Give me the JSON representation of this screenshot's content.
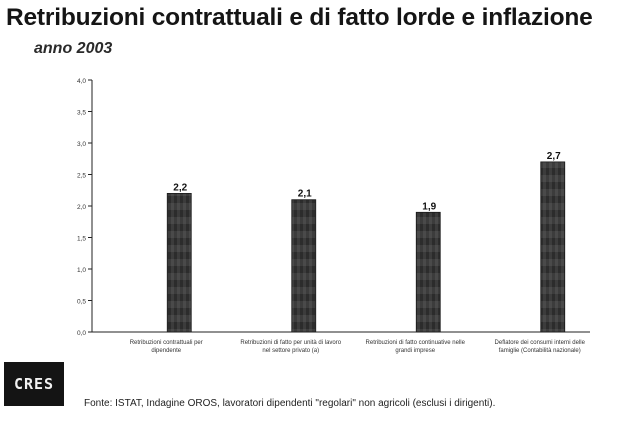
{
  "header": {
    "title": "Retribuzioni contrattuali e di fatto lorde e inflazione",
    "subtitle": "anno 2003"
  },
  "chart_data": {
    "type": "bar",
    "title": "Retribuzioni contrattuali e di fatto lorde e inflazione",
    "subtitle": "anno 2003",
    "categories": [
      [
        "Retribuzioni contrattuali per",
        "dipendente"
      ],
      [
        "Retribuzioni di fatto per unità di lavoro",
        "nel settore privato (a)"
      ],
      [
        "Retribuzioni di fatto continuative nelle",
        "grandi imprese"
      ],
      [
        "Deflatore dei consumi interni delle",
        "famiglie (Contabilità nazionale)"
      ]
    ],
    "values": [
      2.2,
      2.1,
      1.9,
      2.7
    ],
    "value_labels": [
      "2,2",
      "2,1",
      "1,9",
      "2,7"
    ],
    "ylim": [
      0,
      4.0
    ],
    "yticks": [
      0.0,
      0.5,
      1.0,
      1.5,
      2.0,
      2.5,
      3.0,
      3.5,
      4.0
    ],
    "ytick_labels": [
      "0,0",
      "0,5",
      "1,0",
      "1,5",
      "2,0",
      "2,5",
      "3,0",
      "3,5",
      "4,0"
    ],
    "grid": false,
    "legend": "none",
    "bar_color": "#3c3c3c"
  },
  "footer": {
    "logo_text": "CRES",
    "source": "Fonte: ISTAT, Indagine OROS, lavoratori dipendenti \"regolari\" non agricoli (esclusi i dirigenti)."
  }
}
